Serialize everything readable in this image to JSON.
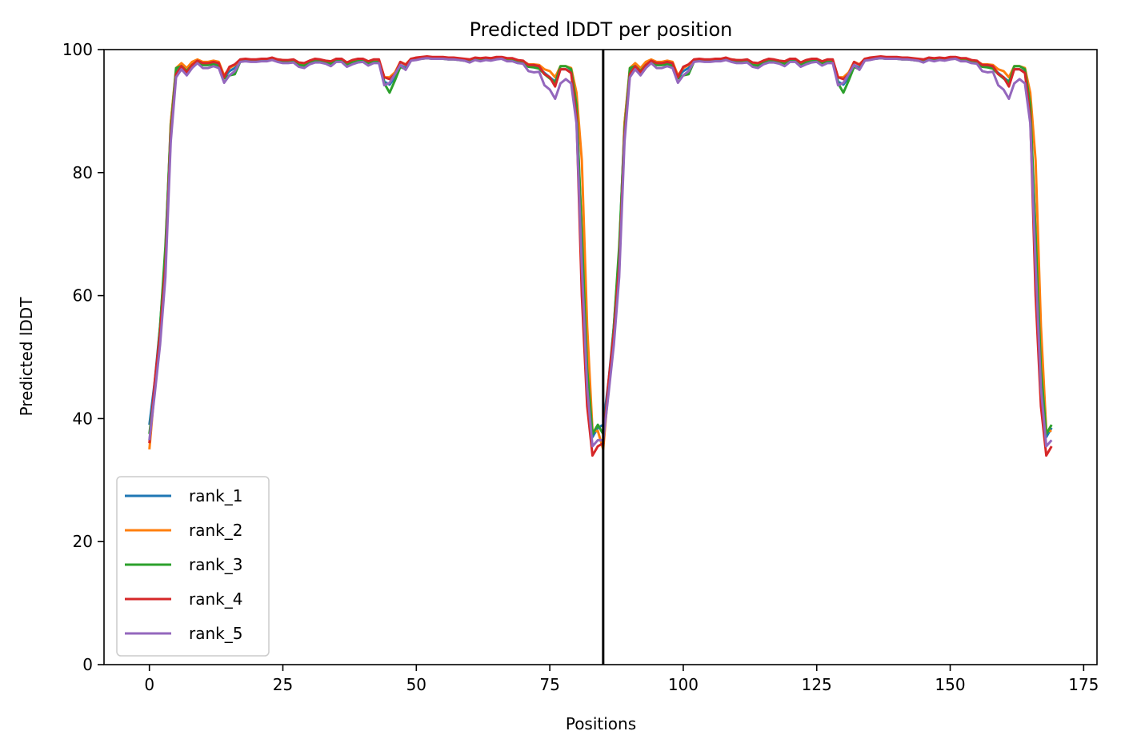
{
  "chart_data": {
    "type": "line",
    "title": "Predicted lDDT per position",
    "xlabel": "Positions",
    "ylabel": "Predicted lDDT",
    "xlim": [
      -8.5,
      177.5
    ],
    "ylim": [
      0,
      100
    ],
    "xticks": [
      0,
      25,
      50,
      75,
      100,
      125,
      150,
      175
    ],
    "yticks": [
      0,
      20,
      40,
      60,
      80,
      100
    ],
    "grid": false,
    "legend": "lower-left",
    "vline": {
      "x": 85,
      "color": "#000000"
    },
    "chain_length": 85,
    "series": [
      {
        "name": "rank_1",
        "color": "#1f77b4",
        "values": [
          39,
          46,
          55,
          67,
          88,
          96.5,
          97.5,
          96.5,
          97.5,
          98,
          97.5,
          97.5,
          97.8,
          97.5,
          95.5,
          96.5,
          97,
          98,
          98.3,
          98.3,
          98.2,
          98.3,
          98.3,
          98.5,
          98.2,
          98.1,
          98,
          98.1,
          97.6,
          97.5,
          97.9,
          98.2,
          98.2,
          98,
          97.8,
          98.3,
          98.3,
          97.6,
          98,
          98.2,
          98.3,
          97.8,
          98.1,
          98.2,
          94.8,
          94.3,
          95.5,
          97.5,
          97,
          98.3,
          98.5,
          98.6,
          98.7,
          98.6,
          98.6,
          98.6,
          98.5,
          98.5,
          98.4,
          98.3,
          98.1,
          98.5,
          98.3,
          98.5,
          98.4,
          98.6,
          98.6,
          98.3,
          98.3,
          98,
          97.9,
          97.3,
          97.2,
          97,
          96.2,
          95.5,
          94.8,
          96.8,
          96.8,
          96.4,
          90,
          70,
          50,
          37,
          38.5
        ]
      },
      {
        "name": "rank_2",
        "color": "#ff7f0e",
        "values": [
          35,
          45,
          54,
          66,
          88,
          97,
          97.8,
          97,
          98,
          98.4,
          98,
          98,
          98.2,
          98,
          95.8,
          97,
          97.5,
          98.3,
          98.4,
          98.3,
          98.3,
          98.4,
          98.4,
          98.6,
          98.4,
          98.3,
          98.2,
          98.3,
          97.8,
          97.7,
          98.1,
          98.4,
          98.3,
          98.1,
          98,
          98.5,
          98.5,
          97.8,
          98.2,
          98.4,
          98.4,
          98,
          98.3,
          98.3,
          95.5,
          95.5,
          96.3,
          98,
          97.6,
          98.5,
          98.6,
          98.7,
          98.8,
          98.7,
          98.7,
          98.7,
          98.6,
          98.6,
          98.5,
          98.4,
          98.3,
          98.6,
          98.5,
          98.6,
          98.6,
          98.7,
          98.7,
          98.5,
          98.5,
          98.2,
          98.1,
          97.6,
          97.6,
          97.5,
          96.8,
          96.5,
          95.5,
          97.3,
          97.3,
          97,
          93,
          82,
          55,
          38,
          38
        ]
      },
      {
        "name": "rank_3",
        "color": "#2ca02c",
        "values": [
          37.5,
          45,
          55,
          68,
          87,
          97,
          97.3,
          96.5,
          97.5,
          98,
          97.5,
          97.5,
          97.6,
          97.3,
          95.3,
          95.8,
          96,
          98,
          98.2,
          98.2,
          98.1,
          98.2,
          98.2,
          98.4,
          98.1,
          98,
          97.9,
          98,
          97.5,
          97.4,
          97.8,
          98.1,
          98.1,
          97.9,
          97.7,
          98.2,
          98.2,
          97.5,
          97.9,
          98.1,
          98.2,
          97.7,
          98,
          98,
          94.5,
          93,
          95,
          97.2,
          96.8,
          98.2,
          98.4,
          98.5,
          98.6,
          98.5,
          98.5,
          98.5,
          98.4,
          98.4,
          98.3,
          98.2,
          98,
          98.4,
          98.2,
          98.4,
          98.3,
          98.5,
          98.5,
          98.2,
          98.2,
          97.9,
          97.8,
          97.2,
          97.1,
          96.9,
          96,
          95.3,
          94.6,
          97.3,
          97.3,
          96.8,
          91,
          70,
          48,
          37.5,
          39
        ]
      },
      {
        "name": "rank_4",
        "color": "#d62728",
        "values": [
          36,
          46,
          54,
          65,
          86,
          96,
          97.3,
          96.3,
          97.5,
          98.2,
          97.8,
          97.8,
          98,
          97.8,
          95.5,
          97.2,
          97.6,
          98.4,
          98.5,
          98.4,
          98.4,
          98.5,
          98.5,
          98.7,
          98.4,
          98.3,
          98.3,
          98.4,
          97.9,
          97.8,
          98.2,
          98.5,
          98.4,
          98.2,
          98.1,
          98.5,
          98.5,
          97.9,
          98.3,
          98.5,
          98.5,
          98.1,
          98.4,
          98.4,
          95.5,
          95.2,
          96,
          98,
          97.5,
          98.5,
          98.7,
          98.8,
          98.9,
          98.8,
          98.8,
          98.8,
          98.7,
          98.7,
          98.6,
          98.5,
          98.4,
          98.7,
          98.6,
          98.7,
          98.6,
          98.8,
          98.8,
          98.6,
          98.6,
          98.3,
          98.2,
          97.5,
          97.5,
          97.3,
          96,
          95.5,
          94,
          96.8,
          96.8,
          96.2,
          89,
          60,
          42,
          34,
          35.5
        ]
      },
      {
        "name": "rank_5",
        "color": "#9467bd",
        "values": [
          36.5,
          44,
          52,
          63,
          85,
          95.5,
          96.8,
          95.8,
          97,
          97.8,
          97,
          97,
          97.3,
          97,
          94.6,
          95.8,
          96.5,
          98,
          98.1,
          98,
          98,
          98.1,
          98.1,
          98.3,
          98,
          97.8,
          97.8,
          97.9,
          97.2,
          97,
          97.6,
          97.9,
          97.9,
          97.7,
          97.3,
          98,
          98,
          97.2,
          97.6,
          97.9,
          98,
          97.4,
          97.8,
          97.8,
          94.2,
          94.6,
          96,
          97.5,
          96.7,
          98.2,
          98.3,
          98.5,
          98.6,
          98.5,
          98.5,
          98.5,
          98.4,
          98.4,
          98.3,
          98.2,
          97.9,
          98.3,
          98.1,
          98.3,
          98.2,
          98.4,
          98.5,
          98.1,
          98.1,
          97.8,
          97.7,
          96.5,
          96.3,
          96.4,
          94.2,
          93.5,
          92,
          94.5,
          95.2,
          94.5,
          88,
          65,
          45,
          35.5,
          36.5
        ]
      }
    ]
  }
}
